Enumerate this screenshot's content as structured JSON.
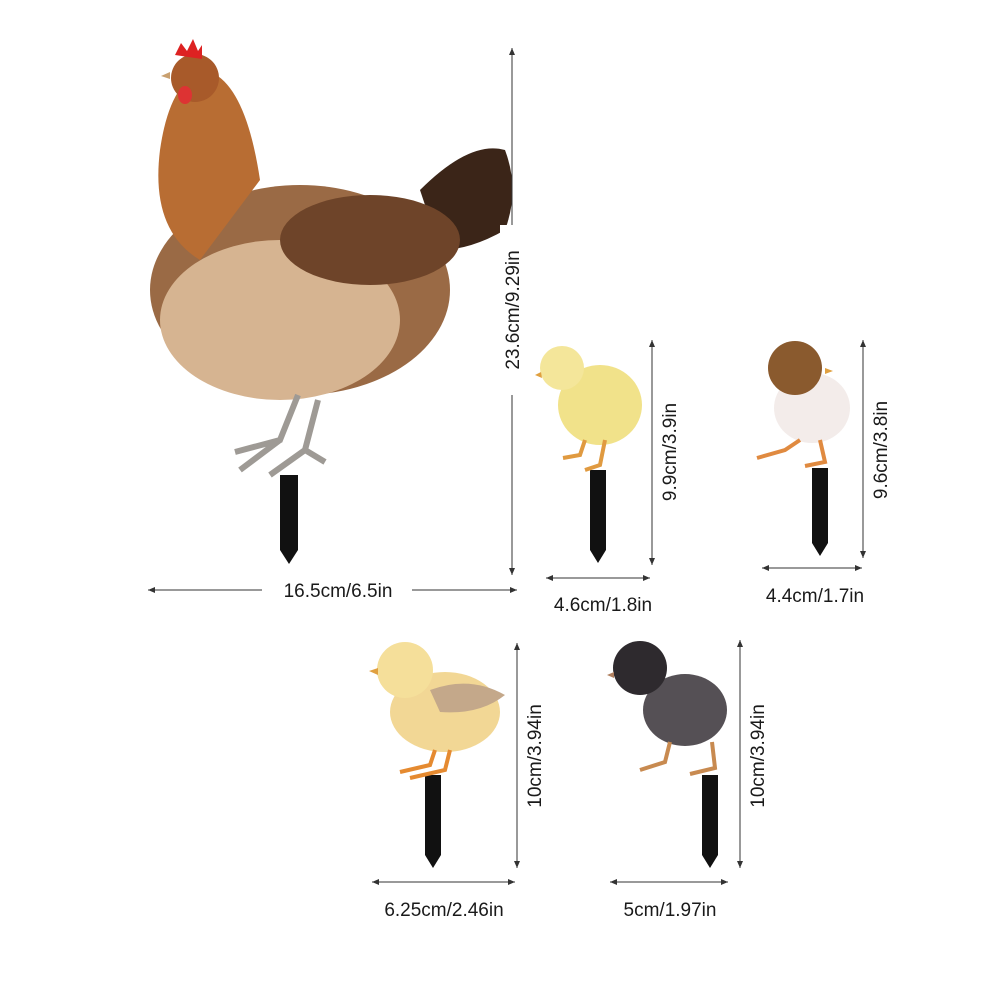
{
  "product": {
    "items": [
      {
        "name": "hen",
        "width_label": "16.5cm/6.5in",
        "height_label": "23.6cm/9.29in"
      },
      {
        "name": "yellow-chick",
        "width_label": "4.6cm/1.8in",
        "height_label": "9.9cm/3.9in"
      },
      {
        "name": "brown-white-chick",
        "width_label": "4.4cm/1.7in",
        "height_label": "9.6cm/3.8in"
      },
      {
        "name": "light-yellow-chick",
        "width_label": "6.25cm/2.46in",
        "height_label": "10cm/3.94in"
      },
      {
        "name": "black-chick",
        "width_label": "5cm/1.97in",
        "height_label": "10cm/3.94in"
      }
    ]
  },
  "colors": {
    "stake": "#111111",
    "dimension_line": "#333333"
  }
}
